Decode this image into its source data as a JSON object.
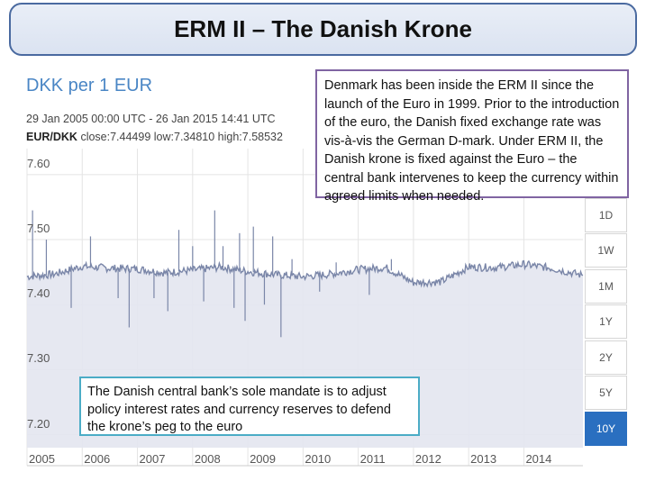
{
  "slide": {
    "title": "ERM II – The Danish Krone",
    "callout_top": "Denmark has been inside the ERM II since the launch of the Euro in 1999. Prior to the introduction of the euro, the Danish fixed exchange rate was vis-à-vis the German D-mark. Under ERM II, the Danish krone is fixed against the Euro – the central bank intervenes to keep the currency within agreed limits when needed.",
    "callout_bottom": "The Danish central bank’s sole mandate is to adjust policy interest rates and currency reserves to defend the krone’s peg to the euro"
  },
  "chart_header": {
    "title": "DKK per 1 EUR",
    "date_range": "29 Jan 2005 00:00 UTC - 26 Jan 2015 14:41 UTC",
    "pair": "EUR/DKK",
    "close_label": "close:",
    "close_value": "7.44499",
    "low_label": "low:",
    "low_value": "7.34810",
    "high_label": "high:",
    "high_value": "7.58532"
  },
  "range_buttons": [
    {
      "label": "1D",
      "active": false
    },
    {
      "label": "1W",
      "active": false
    },
    {
      "label": "1M",
      "active": false
    },
    {
      "label": "1Y",
      "active": false
    },
    {
      "label": "2Y",
      "active": false
    },
    {
      "label": "5Y",
      "active": false
    },
    {
      "label": "10Y",
      "active": true
    }
  ],
  "colors": {
    "line": "#7a86a8",
    "area": "#e3e6ef",
    "grid": "#e4e4e4",
    "accent": "#2a6fc0",
    "callout_top_border": "#8064a2",
    "callout_bottom_border": "#4bacc6"
  },
  "chart_data": {
    "type": "area",
    "series": [
      {
        "name": "EUR/DKK",
        "x": [
          2005.0,
          2005.5,
          2006.0,
          2006.5,
          2007.0,
          2007.5,
          2008.0,
          2008.5,
          2009.0,
          2009.5,
          2010.0,
          2010.5,
          2011.0,
          2011.5,
          2012.0,
          2012.5,
          2013.0,
          2013.5,
          2014.0,
          2014.5,
          2015.07
        ],
        "values": [
          7.443,
          7.447,
          7.459,
          7.456,
          7.455,
          7.449,
          7.453,
          7.458,
          7.451,
          7.446,
          7.443,
          7.447,
          7.454,
          7.457,
          7.434,
          7.435,
          7.458,
          7.457,
          7.462,
          7.456,
          7.445
        ]
      }
    ],
    "spikes": [
      {
        "x": 2005.1,
        "value": 7.545
      },
      {
        "x": 2005.35,
        "value": 7.5
      },
      {
        "x": 2005.8,
        "value": 7.395
      },
      {
        "x": 2006.15,
        "value": 7.505
      },
      {
        "x": 2006.65,
        "value": 7.41
      },
      {
        "x": 2006.85,
        "value": 7.365
      },
      {
        "x": 2007.3,
        "value": 7.41
      },
      {
        "x": 2007.55,
        "value": 7.39
      },
      {
        "x": 2007.75,
        "value": 7.515
      },
      {
        "x": 2008.0,
        "value": 7.49
      },
      {
        "x": 2008.2,
        "value": 7.405
      },
      {
        "x": 2008.4,
        "value": 7.545
      },
      {
        "x": 2008.55,
        "value": 7.49
      },
      {
        "x": 2008.75,
        "value": 7.395
      },
      {
        "x": 2008.85,
        "value": 7.51
      },
      {
        "x": 2008.95,
        "value": 7.375
      },
      {
        "x": 2009.1,
        "value": 7.52
      },
      {
        "x": 2009.3,
        "value": 7.4
      },
      {
        "x": 2009.45,
        "value": 7.505
      },
      {
        "x": 2009.6,
        "value": 7.35
      },
      {
        "x": 2009.8,
        "value": 7.47
      },
      {
        "x": 2010.3,
        "value": 7.42
      },
      {
        "x": 2010.6,
        "value": 7.465
      },
      {
        "x": 2011.2,
        "value": 7.415
      },
      {
        "x": 2011.6,
        "value": 7.47
      }
    ],
    "xlim": [
      2005.0,
      2015.07
    ],
    "ylim": [
      7.18,
      7.64
    ],
    "yticks": [
      7.2,
      7.3,
      7.4,
      7.5,
      7.6
    ],
    "ytick_labels": [
      "7.20",
      "7.30",
      "7.40",
      "7.50",
      "7.60"
    ],
    "xticks": [
      2005,
      2006,
      2007,
      2008,
      2009,
      2010,
      2011,
      2012,
      2013,
      2014
    ],
    "xtick_labels": [
      "2005",
      "2006",
      "2007",
      "2008",
      "2009",
      "2010",
      "2011",
      "2012",
      "2013",
      "2014"
    ],
    "grid": true,
    "title": "DKK per 1 EUR",
    "xlabel": "",
    "ylabel": ""
  }
}
